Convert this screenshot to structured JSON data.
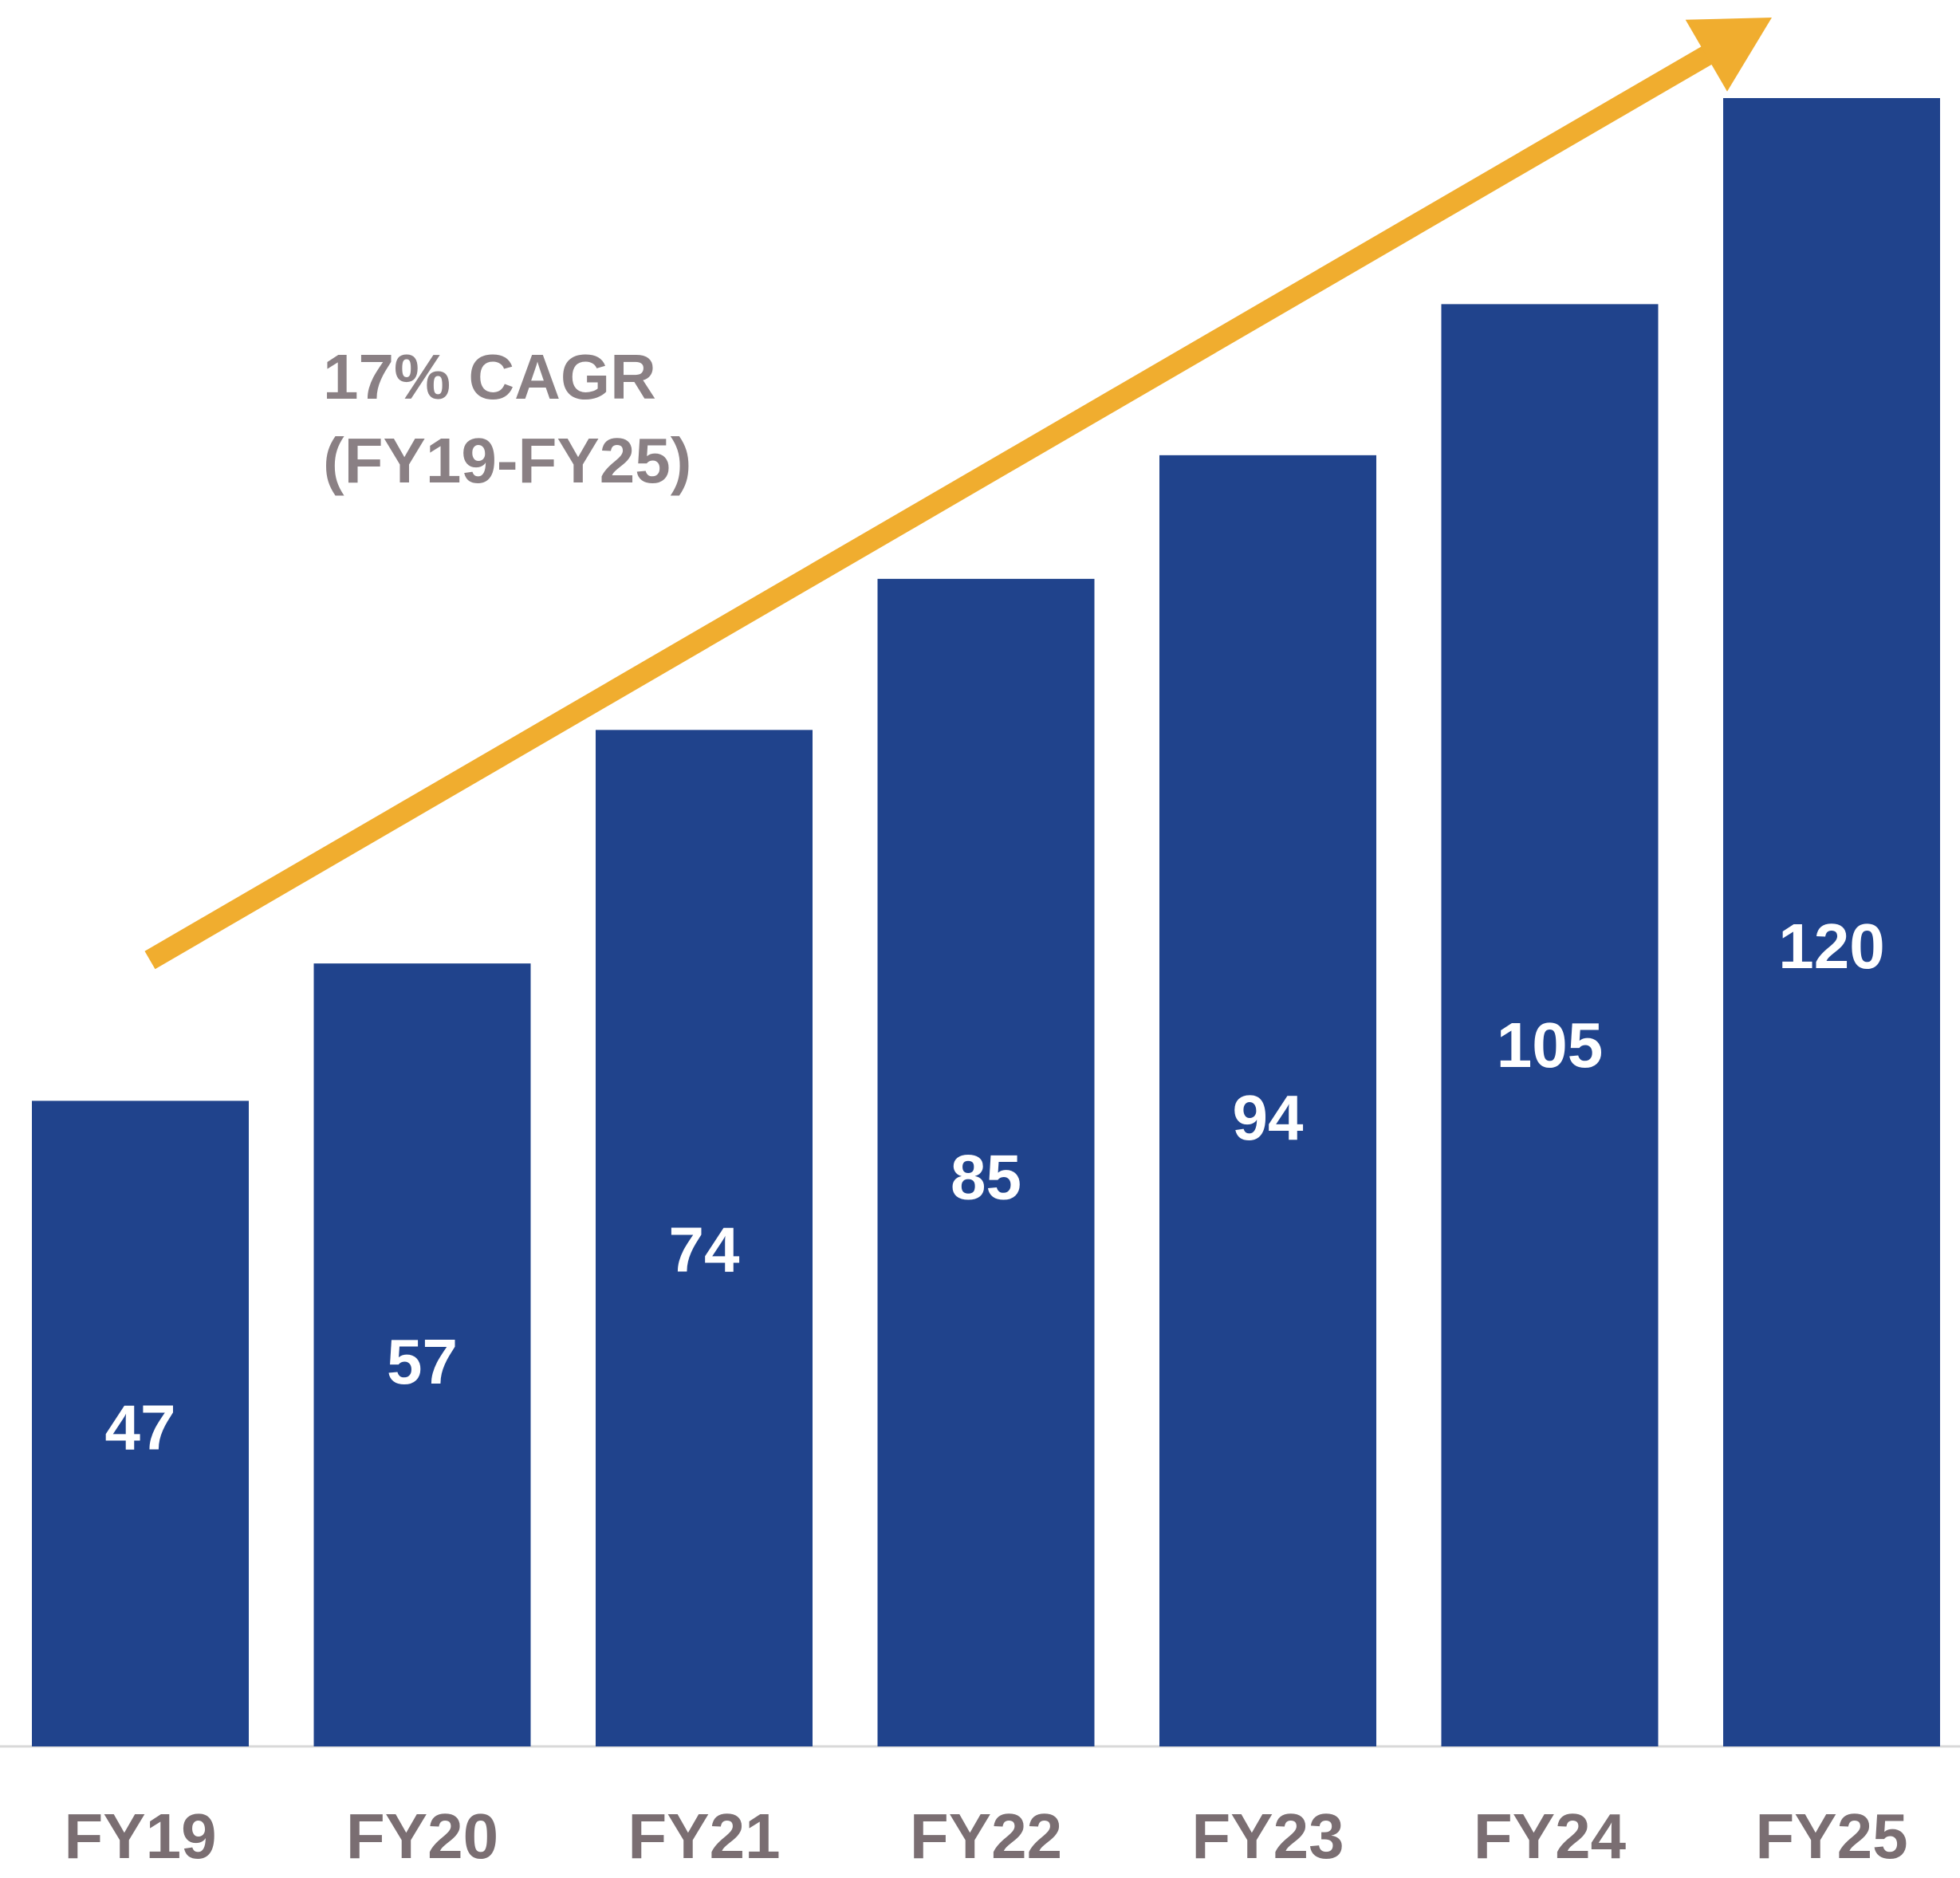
{
  "chart_data": {
    "type": "bar",
    "categories": [
      "FY19",
      "FY20",
      "FY21",
      "FY22",
      "FY23",
      "FY24",
      "FY25"
    ],
    "values": [
      47,
      57,
      74,
      85,
      94,
      105,
      120
    ],
    "title": "",
    "xlabel": "",
    "ylabel": "",
    "ylim": [
      0,
      125
    ],
    "grid": false,
    "legend": "none",
    "data_labels": true,
    "annotation": {
      "line1": "17% CAGR",
      "line2": "(FY19-FY25)"
    },
    "trend_arrow": {
      "from_category": "FY19",
      "to_category": "FY25",
      "color": "#F0AD2F"
    },
    "colors": {
      "bar": "#20438C",
      "label_text": "#7A6E72",
      "annotation_text": "#8A8084",
      "value_text": "#FFFFFF",
      "baseline": "#D9D9D9"
    }
  }
}
